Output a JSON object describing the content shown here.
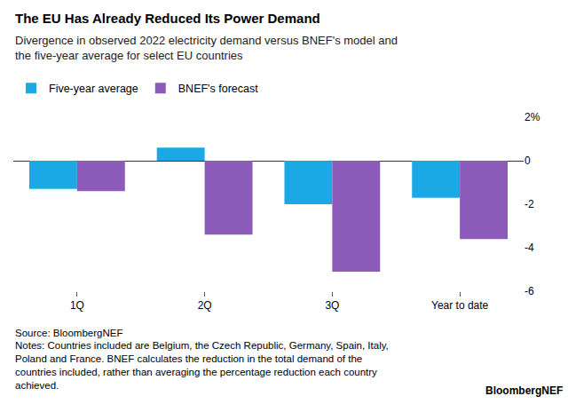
{
  "chart_data": {
    "type": "bar",
    "title": "The EU Has Already Reduced Its Power Demand",
    "subtitle": [
      "Divergence in observed 2022 electricity demand versus BNEF's model and",
      "the five-year average for select EU countries"
    ],
    "categories": [
      "1Q",
      "2Q",
      "3Q",
      "Year to date"
    ],
    "series": [
      {
        "name": "Five-year average",
        "color": "#1ba9e6",
        "values": [
          -1.3,
          0.6,
          -2.0,
          -1.7
        ]
      },
      {
        "name": "BNEF's forecast",
        "color": "#8c5bb9",
        "values": [
          -1.4,
          -3.4,
          -5.1,
          -3.6
        ]
      }
    ],
    "ylim": [
      -6,
      2
    ],
    "yticks": [
      {
        "value": 2,
        "label": "2%"
      },
      0,
      -2,
      -4,
      -6
    ],
    "grid": false,
    "legend": "top left",
    "source": "Source: BloombergNEF",
    "notes": [
      "Notes: Countries included are Belgium, the Czech Republic, Germany, Spain, Italy,",
      "Poland and France. BNEF calculates the reduction in the total demand of the",
      "countries included, rather than averaging the percentage reduction each country",
      "achieved."
    ],
    "footer": "BloombergNEF"
  }
}
